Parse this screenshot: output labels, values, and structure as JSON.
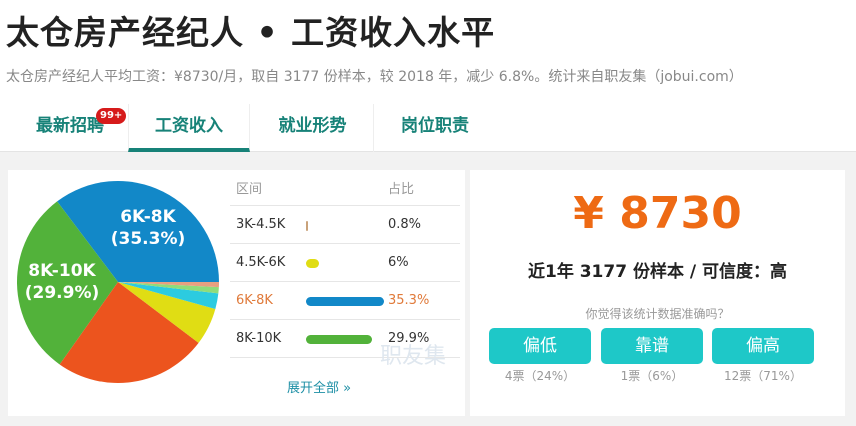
{
  "header": {
    "title": "太仓房产经纪人 • 工资收入水平",
    "subtitle": "太仓房产经纪人平均工资：¥8730/月，取自 3177 份样本，较 2018 年，减少 6.8%。统计来自职友集（jobui.com）"
  },
  "tabs": [
    {
      "label": "最新招聘",
      "badge": "99+"
    },
    {
      "label": "工资收入",
      "active": true
    },
    {
      "label": "就业形势"
    },
    {
      "label": "岗位职责"
    }
  ],
  "table": {
    "col_range": "区间",
    "col_ratio": "占比",
    "rows": [
      {
        "range": "3K-4.5K",
        "ratio": "0.8%",
        "value": 0.8,
        "color": "#c9a27a"
      },
      {
        "range": "4.5K-6K",
        "ratio": "6%",
        "value": 6,
        "color": "#e0dd14"
      },
      {
        "range": "6K-8K",
        "ratio": "35.3%",
        "value": 35.3,
        "color": "#1288c8",
        "highlight": true
      },
      {
        "range": "8K-10K",
        "ratio": "29.9%",
        "value": 29.9,
        "color": "#52b23a"
      }
    ],
    "expand": "展开全部 »",
    "watermark": "职友集"
  },
  "chart_data": {
    "type": "pie",
    "slices": [
      {
        "label": "6K-8K",
        "pct_label": "(35.3%)",
        "value": 35.3,
        "color": "#1288c8"
      },
      {
        "label": "8K-10K",
        "pct_label": "(29.9%)",
        "value": 29.9,
        "color": "#52b23a"
      },
      {
        "label": "",
        "value": 24.5,
        "color": "#ec541e"
      },
      {
        "label": "",
        "value": 6,
        "color": "#e0dd14"
      },
      {
        "label": "",
        "value": 2.5,
        "color": "#2ccbe0"
      },
      {
        "label": "",
        "value": 1,
        "color": "#8fdc7a"
      },
      {
        "label": "",
        "value": 0.8,
        "color": "#e8a080"
      }
    ]
  },
  "summary": {
    "salary": "¥ 8730",
    "samples": "近1年 3177 份样本 / 可信度：高",
    "question": "你觉得该统计数据准确吗？",
    "votes": [
      {
        "label": "偏低",
        "count": "4票（24%）"
      },
      {
        "label": "靠谱",
        "count": "1票（6%）"
      },
      {
        "label": "偏高",
        "count": "12票（71%）"
      }
    ]
  }
}
